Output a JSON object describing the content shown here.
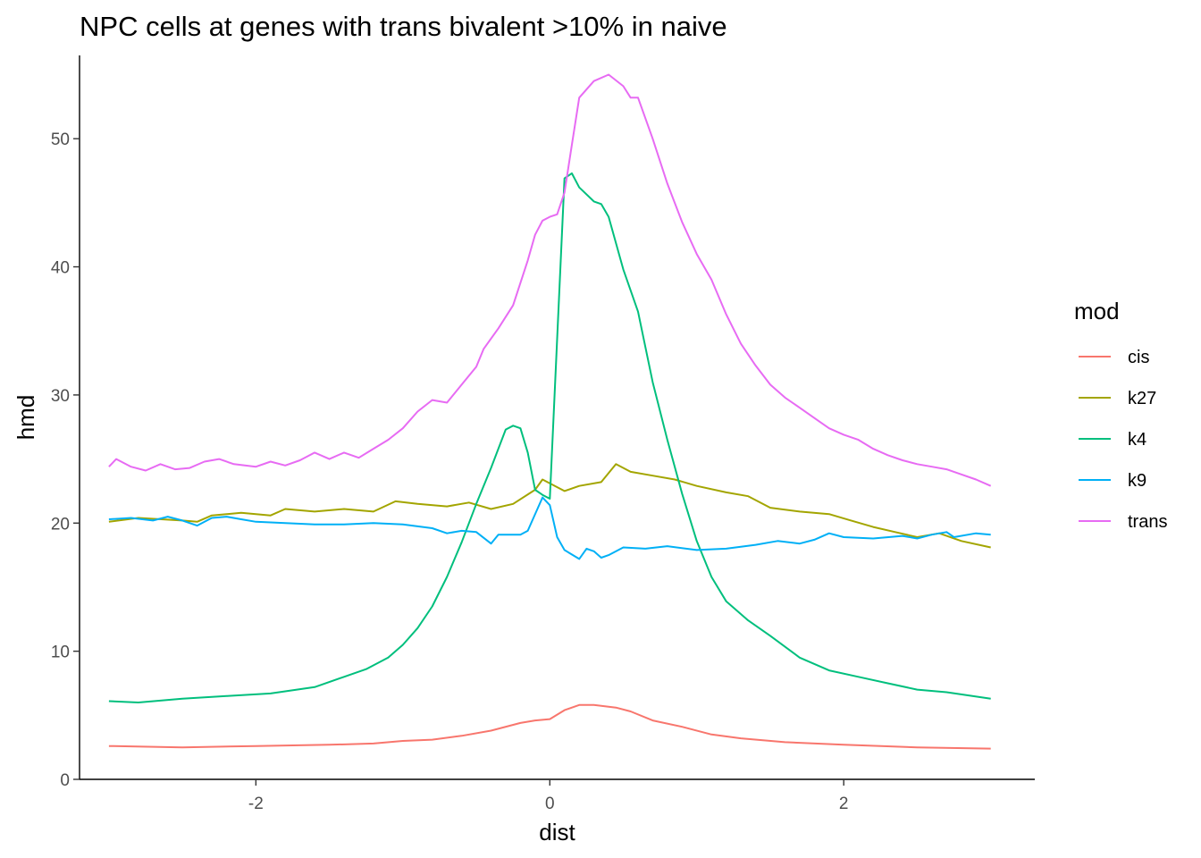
{
  "chart_data": {
    "type": "line",
    "title": "NPC cells at genes with trans bivalent >10% in naive",
    "xlabel": "dist",
    "ylabel": "hmd",
    "xlim": [
      -3.2,
      3.3
    ],
    "ylim": [
      0,
      56.5
    ],
    "xticks": [
      -2,
      0,
      2
    ],
    "xtick_labels": [
      "-2",
      "0",
      "2"
    ],
    "yticks": [
      0,
      10,
      20,
      30,
      40,
      50
    ],
    "ytick_labels": [
      "0",
      "10",
      "20",
      "30",
      "40",
      "50"
    ],
    "grid": false,
    "legend": {
      "title": "mod",
      "placement": "right"
    },
    "series": [
      {
        "name": "cis",
        "color": "#F8766D",
        "points": [
          [
            -3,
            2.6
          ],
          [
            -2.5,
            2.5
          ],
          [
            -2,
            2.6
          ],
          [
            -1.5,
            2.7
          ],
          [
            -1.2,
            2.8
          ],
          [
            -1,
            3.0
          ],
          [
            -0.8,
            3.1
          ],
          [
            -0.6,
            3.4
          ],
          [
            -0.4,
            3.8
          ],
          [
            -0.2,
            4.4
          ],
          [
            -0.1,
            4.6
          ],
          [
            0,
            4.7
          ],
          [
            0.1,
            5.4
          ],
          [
            0.2,
            5.8
          ],
          [
            0.3,
            5.8
          ],
          [
            0.45,
            5.6
          ],
          [
            0.55,
            5.3
          ],
          [
            0.7,
            4.6
          ],
          [
            0.9,
            4.1
          ],
          [
            1.1,
            3.5
          ],
          [
            1.3,
            3.2
          ],
          [
            1.6,
            2.9
          ],
          [
            2,
            2.7
          ],
          [
            2.5,
            2.5
          ],
          [
            3,
            2.4
          ]
        ]
      },
      {
        "name": "k27",
        "color": "#A3A500",
        "points": [
          [
            -3,
            20.1
          ],
          [
            -2.8,
            20.4
          ],
          [
            -2.5,
            20.2
          ],
          [
            -2.4,
            20.1
          ],
          [
            -2.3,
            20.6
          ],
          [
            -2.1,
            20.8
          ],
          [
            -1.9,
            20.6
          ],
          [
            -1.8,
            21.1
          ],
          [
            -1.6,
            20.9
          ],
          [
            -1.4,
            21.1
          ],
          [
            -1.2,
            20.9
          ],
          [
            -1.05,
            21.7
          ],
          [
            -0.9,
            21.5
          ],
          [
            -0.7,
            21.3
          ],
          [
            -0.55,
            21.6
          ],
          [
            -0.4,
            21.1
          ],
          [
            -0.25,
            21.5
          ],
          [
            -0.1,
            22.6
          ],
          [
            -0.05,
            23.4
          ],
          [
            0.1,
            22.5
          ],
          [
            0.2,
            22.9
          ],
          [
            0.35,
            23.2
          ],
          [
            0.45,
            24.6
          ],
          [
            0.55,
            24.0
          ],
          [
            0.7,
            23.7
          ],
          [
            0.85,
            23.4
          ],
          [
            1.0,
            22.9
          ],
          [
            1.2,
            22.4
          ],
          [
            1.35,
            22.1
          ],
          [
            1.5,
            21.2
          ],
          [
            1.7,
            20.9
          ],
          [
            1.9,
            20.7
          ],
          [
            2.05,
            20.2
          ],
          [
            2.2,
            19.7
          ],
          [
            2.35,
            19.3
          ],
          [
            2.5,
            18.9
          ],
          [
            2.65,
            19.2
          ],
          [
            2.8,
            18.6
          ],
          [
            3,
            18.1
          ]
        ]
      },
      {
        "name": "k4",
        "color": "#00BF7D",
        "points": [
          [
            -3,
            6.1
          ],
          [
            -2.8,
            6.0
          ],
          [
            -2.5,
            6.3
          ],
          [
            -2.2,
            6.5
          ],
          [
            -1.9,
            6.7
          ],
          [
            -1.6,
            7.2
          ],
          [
            -1.4,
            8.0
          ],
          [
            -1.25,
            8.6
          ],
          [
            -1.1,
            9.5
          ],
          [
            -1.0,
            10.5
          ],
          [
            -0.9,
            11.8
          ],
          [
            -0.8,
            13.5
          ],
          [
            -0.7,
            15.8
          ],
          [
            -0.6,
            18.5
          ],
          [
            -0.5,
            21.5
          ],
          [
            -0.4,
            24.3
          ],
          [
            -0.3,
            27.3
          ],
          [
            -0.25,
            27.6
          ],
          [
            -0.2,
            27.4
          ],
          [
            -0.15,
            25.5
          ],
          [
            -0.1,
            22.6
          ],
          [
            -0.05,
            22.2
          ],
          [
            0.0,
            21.9
          ],
          [
            0.1,
            46.9
          ],
          [
            0.15,
            47.3
          ],
          [
            0.2,
            46.2
          ],
          [
            0.3,
            45.1
          ],
          [
            0.35,
            44.9
          ],
          [
            0.4,
            43.9
          ],
          [
            0.5,
            39.8
          ],
          [
            0.6,
            36.5
          ],
          [
            0.7,
            31.0
          ],
          [
            0.8,
            26.5
          ],
          [
            0.9,
            22.3
          ],
          [
            1.0,
            18.6
          ],
          [
            1.1,
            15.8
          ],
          [
            1.2,
            13.9
          ],
          [
            1.35,
            12.4
          ],
          [
            1.5,
            11.2
          ],
          [
            1.7,
            9.5
          ],
          [
            1.9,
            8.5
          ],
          [
            2.1,
            8.0
          ],
          [
            2.3,
            7.5
          ],
          [
            2.5,
            7.0
          ],
          [
            2.7,
            6.8
          ],
          [
            3,
            6.3
          ]
        ]
      },
      {
        "name": "k9",
        "color": "#00B0F6",
        "points": [
          [
            -3,
            20.3
          ],
          [
            -2.85,
            20.4
          ],
          [
            -2.7,
            20.2
          ],
          [
            -2.6,
            20.5
          ],
          [
            -2.5,
            20.2
          ],
          [
            -2.4,
            19.8
          ],
          [
            -2.3,
            20.4
          ],
          [
            -2.2,
            20.5
          ],
          [
            -2.1,
            20.3
          ],
          [
            -2.0,
            20.1
          ],
          [
            -1.8,
            20.0
          ],
          [
            -1.6,
            19.9
          ],
          [
            -1.4,
            19.9
          ],
          [
            -1.2,
            20.0
          ],
          [
            -1.0,
            19.9
          ],
          [
            -0.8,
            19.6
          ],
          [
            -0.7,
            19.2
          ],
          [
            -0.6,
            19.4
          ],
          [
            -0.5,
            19.3
          ],
          [
            -0.4,
            18.4
          ],
          [
            -0.35,
            19.1
          ],
          [
            -0.2,
            19.1
          ],
          [
            -0.15,
            19.4
          ],
          [
            -0.05,
            22.0
          ],
          [
            0.0,
            21.4
          ],
          [
            0.05,
            18.9
          ],
          [
            0.1,
            17.9
          ],
          [
            0.2,
            17.2
          ],
          [
            0.25,
            18.0
          ],
          [
            0.3,
            17.8
          ],
          [
            0.35,
            17.3
          ],
          [
            0.4,
            17.5
          ],
          [
            0.5,
            18.1
          ],
          [
            0.65,
            18.0
          ],
          [
            0.8,
            18.2
          ],
          [
            1.0,
            17.9
          ],
          [
            1.2,
            18.0
          ],
          [
            1.4,
            18.3
          ],
          [
            1.55,
            18.6
          ],
          [
            1.7,
            18.4
          ],
          [
            1.8,
            18.7
          ],
          [
            1.9,
            19.2
          ],
          [
            2.0,
            18.9
          ],
          [
            2.2,
            18.8
          ],
          [
            2.4,
            19.0
          ],
          [
            2.5,
            18.8
          ],
          [
            2.6,
            19.1
          ],
          [
            2.7,
            19.3
          ],
          [
            2.75,
            18.9
          ],
          [
            2.9,
            19.2
          ],
          [
            3,
            19.1
          ]
        ]
      },
      {
        "name": "trans",
        "color": "#E76BF3",
        "points": [
          [
            -3,
            24.4
          ],
          [
            -2.95,
            25.0
          ],
          [
            -2.85,
            24.4
          ],
          [
            -2.75,
            24.1
          ],
          [
            -2.65,
            24.6
          ],
          [
            -2.55,
            24.2
          ],
          [
            -2.45,
            24.3
          ],
          [
            -2.35,
            24.8
          ],
          [
            -2.25,
            25.0
          ],
          [
            -2.15,
            24.6
          ],
          [
            -2.0,
            24.4
          ],
          [
            -1.9,
            24.8
          ],
          [
            -1.8,
            24.5
          ],
          [
            -1.7,
            24.9
          ],
          [
            -1.6,
            25.5
          ],
          [
            -1.5,
            25.0
          ],
          [
            -1.4,
            25.5
          ],
          [
            -1.3,
            25.1
          ],
          [
            -1.2,
            25.8
          ],
          [
            -1.1,
            26.5
          ],
          [
            -1.0,
            27.4
          ],
          [
            -0.9,
            28.7
          ],
          [
            -0.8,
            29.6
          ],
          [
            -0.7,
            29.4
          ],
          [
            -0.6,
            30.8
          ],
          [
            -0.5,
            32.2
          ],
          [
            -0.45,
            33.6
          ],
          [
            -0.35,
            35.2
          ],
          [
            -0.25,
            37.0
          ],
          [
            -0.15,
            40.5
          ],
          [
            -0.1,
            42.5
          ],
          [
            -0.05,
            43.6
          ],
          [
            0.0,
            43.9
          ],
          [
            0.05,
            44.1
          ],
          [
            0.1,
            45.8
          ],
          [
            0.15,
            49.5
          ],
          [
            0.2,
            53.2
          ],
          [
            0.3,
            54.5
          ],
          [
            0.4,
            55.0
          ],
          [
            0.5,
            54.1
          ],
          [
            0.55,
            53.2
          ],
          [
            0.6,
            53.2
          ],
          [
            0.7,
            50.0
          ],
          [
            0.8,
            46.5
          ],
          [
            0.9,
            43.5
          ],
          [
            1.0,
            41.0
          ],
          [
            1.1,
            39.0
          ],
          [
            1.2,
            36.3
          ],
          [
            1.3,
            34.0
          ],
          [
            1.4,
            32.3
          ],
          [
            1.5,
            30.8
          ],
          [
            1.6,
            29.8
          ],
          [
            1.7,
            29.0
          ],
          [
            1.8,
            28.2
          ],
          [
            1.9,
            27.4
          ],
          [
            2.0,
            26.9
          ],
          [
            2.1,
            26.5
          ],
          [
            2.2,
            25.8
          ],
          [
            2.3,
            25.3
          ],
          [
            2.4,
            24.9
          ],
          [
            2.5,
            24.6
          ],
          [
            2.6,
            24.4
          ],
          [
            2.7,
            24.2
          ],
          [
            2.8,
            23.8
          ],
          [
            2.9,
            23.4
          ],
          [
            3,
            22.9
          ]
        ]
      }
    ]
  }
}
